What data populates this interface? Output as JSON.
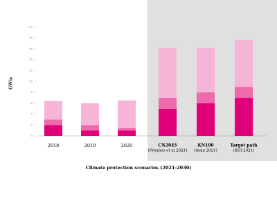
{
  "chart_data": {
    "type": "stacked-bar",
    "x_label": "Climate protection scenarios (2021-2030)",
    "y_label": "GW/a",
    "categories": [
      "2018",
      "2019",
      "2020",
      "CN2045",
      "KN100",
      "Target path"
    ],
    "category_notes": [
      null,
      null,
      null,
      "(Prognos et al 2021)",
      "(dena 2021)",
      "(BDI 2021)"
    ],
    "series": [
      {
        "color": "#e0007a",
        "values": [
          2,
          1,
          1,
          5,
          6,
          7
        ]
      },
      {
        "color": "#ee6aab",
        "values": [
          1,
          1,
          0.4,
          2,
          2,
          2
        ]
      },
      {
        "color": "#f6b5d6",
        "values": [
          3.4,
          4,
          5.1,
          9.2,
          8.2,
          8.6
        ]
      }
    ],
    "ylim": [
      0,
      20
    ],
    "yticks": [
      0,
      2,
      4,
      6,
      8,
      10,
      12,
      14,
      16,
      18,
      20
    ]
  }
}
